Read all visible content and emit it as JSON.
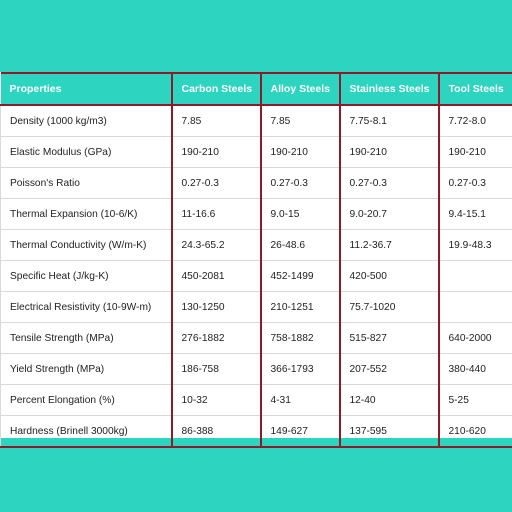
{
  "table": {
    "headers": [
      "Properties",
      "Carbon Steels",
      "Alloy Steels",
      "Stainless Steels",
      "Tool Steels"
    ],
    "rows": [
      [
        "Density (1000 kg/m3)",
        "7.85",
        "7.85",
        "7.75-8.1",
        "7.72-8.0"
      ],
      [
        "Elastic Modulus (GPa)",
        "190-210",
        "190-210",
        "190-210",
        "190-210"
      ],
      [
        "Poisson's Ratio",
        "0.27-0.3",
        "0.27-0.3",
        "0.27-0.3",
        "0.27-0.3"
      ],
      [
        "Thermal Expansion (10-6/K)",
        "11-16.6",
        "9.0-15",
        "9.0-20.7",
        "9.4-15.1"
      ],
      [
        "Thermal Conductivity (W/m-K)",
        "24.3-65.2",
        "26-48.6",
        "11.2-36.7",
        "19.9-48.3"
      ],
      [
        "Specific Heat (J/kg-K)",
        "450-2081",
        "452-1499",
        "420-500",
        ""
      ],
      [
        "Electrical Resistivity (10-9W-m)",
        "130-1250",
        "210-1251",
        "75.7-1020",
        ""
      ],
      [
        "Tensile Strength (MPa)",
        "276-1882",
        "758-1882",
        "515-827",
        "640-2000"
      ],
      [
        "Yield Strength (MPa)",
        "186-758",
        "366-1793",
        "207-552",
        "380-440"
      ],
      [
        "Percent Elongation (%)",
        "10-32",
        "4-31",
        "12-40",
        "5-25"
      ],
      [
        "Hardness (Brinell 3000kg)",
        "86-388",
        "149-627",
        "137-595",
        "210-620"
      ]
    ]
  }
}
